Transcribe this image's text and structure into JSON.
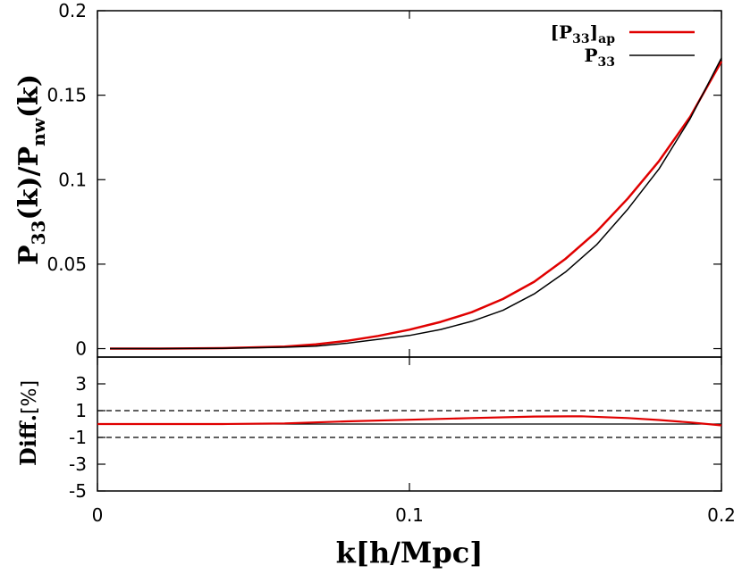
{
  "chart_data": [
    {
      "type": "line",
      "panel": "top",
      "ylabel": "P33(k)/Pnw(k)",
      "ylabel_parts": {
        "p": "P",
        "sub1": "33",
        "mid": "(k)/P",
        "sub2": "nw",
        "end": "(k)"
      },
      "xlim": [
        0,
        0.2
      ],
      "ylim": [
        -0.005,
        0.2
      ],
      "yticks": [
        {
          "value": 0,
          "label": "0"
        },
        {
          "value": 0.05,
          "label": "0.05"
        },
        {
          "value": 0.1,
          "label": "0.1"
        },
        {
          "value": 0.15,
          "label": "0.15"
        },
        {
          "value": 0.2,
          "label": "0.2"
        }
      ],
      "legend_position": "top-right",
      "legend": [
        {
          "base": "[P",
          "sub": "33",
          "close": "]",
          "sub2": "ap"
        },
        {
          "base": "P",
          "sub": "33",
          "close": "",
          "sub2": ""
        }
      ],
      "series": [
        {
          "name": "[P33]ap",
          "color": "#e00000",
          "x": [
            0.004,
            0.02,
            0.04,
            0.06,
            0.07,
            0.08,
            0.09,
            0.1,
            0.11,
            0.12,
            0.13,
            0.14,
            0.15,
            0.16,
            0.17,
            0.18,
            0.19,
            0.2
          ],
          "y": [
            0,
            0,
            0.0003,
            0.0012,
            0.0025,
            0.0046,
            0.0075,
            0.0112,
            0.0158,
            0.0216,
            0.0294,
            0.0396,
            0.0531,
            0.0693,
            0.0889,
            0.111,
            0.1373,
            0.17
          ]
        },
        {
          "name": "P33",
          "color": "#000000",
          "x": [
            0.004,
            0.02,
            0.04,
            0.06,
            0.07,
            0.08,
            0.09,
            0.1,
            0.11,
            0.12,
            0.13,
            0.14,
            0.15,
            0.16,
            0.17,
            0.18,
            0.19,
            0.2
          ],
          "y": [
            0,
            0,
            0.0002,
            0.0008,
            0.0015,
            0.0032,
            0.0055,
            0.0078,
            0.0113,
            0.0162,
            0.0227,
            0.0324,
            0.0453,
            0.0615,
            0.0826,
            0.1064,
            0.1362,
            0.172
          ]
        }
      ]
    },
    {
      "type": "line",
      "panel": "bottom",
      "ylabel": "Diff.[%]",
      "ylabel_parts": {
        "text": "Diff.",
        "bracket": "[%]"
      },
      "xlabel": "k[h/Mpc]",
      "xlim": [
        0,
        0.2
      ],
      "ylim": [
        -5,
        5
      ],
      "yticks": [
        {
          "value": -5,
          "label": "-5"
        },
        {
          "value": -3,
          "label": "-3"
        },
        {
          "value": -1,
          "label": "-1"
        },
        {
          "value": 1,
          "label": "1"
        },
        {
          "value": 3,
          "label": "3"
        }
      ],
      "xticks": [
        {
          "value": 0,
          "label": "0"
        },
        {
          "value": 0.1,
          "label": "0.1"
        },
        {
          "value": 0.2,
          "label": "0.2"
        }
      ],
      "reference_lines": [
        {
          "y": 1,
          "style": "dashed"
        },
        {
          "y": -1,
          "style": "dashed"
        },
        {
          "y": 0,
          "style": "solid"
        }
      ],
      "series": [
        {
          "color": "#e00000",
          "x": [
            0,
            0.04,
            0.06,
            0.08,
            0.1,
            0.12,
            0.14,
            0.155,
            0.17,
            0.18,
            0.19,
            0.2
          ],
          "y": [
            0,
            0,
            0.05,
            0.2,
            0.32,
            0.45,
            0.56,
            0.58,
            0.45,
            0.3,
            0.12,
            -0.1
          ]
        }
      ]
    }
  ]
}
